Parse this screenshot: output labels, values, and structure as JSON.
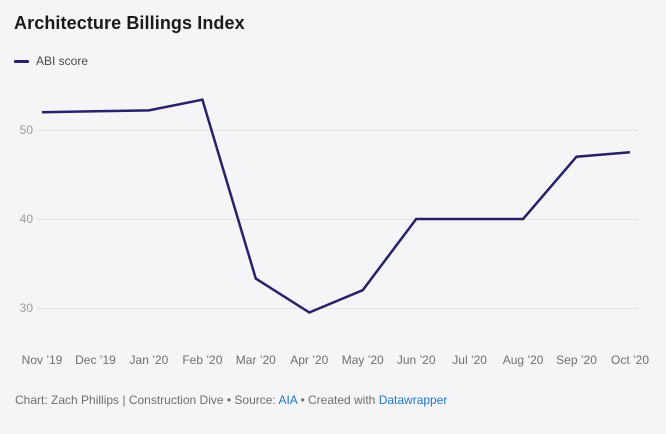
{
  "header": {
    "title": "Architecture Billings Index"
  },
  "legend": {
    "label": "ABI score"
  },
  "chart_data": {
    "type": "line",
    "title": "Architecture Billings Index",
    "categories": [
      "Nov ’19",
      "Dec ’19",
      "Jan ’20",
      "Feb ’20",
      "Mar ’20",
      "Apr ’20",
      "May ’20",
      "Jun ’20",
      "Jul ’20",
      "Aug ’20",
      "Sep ’20",
      "Oct ’20"
    ],
    "series": [
      {
        "name": "ABI score",
        "values": [
          52.0,
          52.1,
          52.2,
          53.4,
          33.3,
          29.5,
          32.0,
          40.0,
          40.0,
          40.0,
          47.0,
          47.5
        ]
      }
    ],
    "xlabel": "",
    "ylabel": "",
    "yticks": [
      50,
      40,
      30
    ],
    "ylim": [
      27.5,
      54.5
    ],
    "grid": "horizontal",
    "legend_position": "top-left"
  },
  "footer": {
    "credit_prefix": "Chart: Zach Phillips | Construction Dive • Source: ",
    "source_link": "AIA",
    "created_with": " • Created with ",
    "tool_link": "Datawrapper"
  },
  "colors": {
    "line": "#262168",
    "background": "#f5f5f7",
    "gridline": "#e3e3e5",
    "link": "#2077d4"
  }
}
